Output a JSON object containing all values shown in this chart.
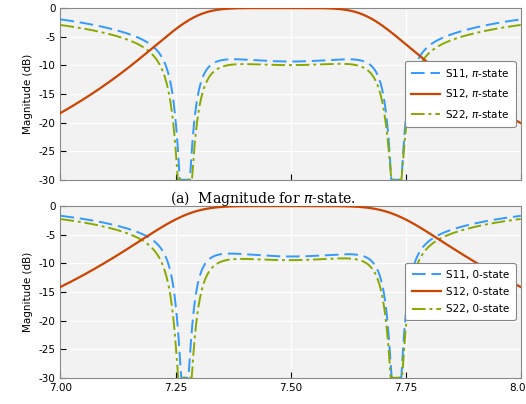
{
  "xlim": [
    7.0,
    8.0
  ],
  "ylim": [
    -30,
    0
  ],
  "yticks": [
    0,
    -5,
    -10,
    -15,
    -20,
    -25,
    -30
  ],
  "xticks": [
    7.0,
    7.25,
    7.5,
    7.75,
    8.0
  ],
  "ylabel": "Magnitude (dB)",
  "caption": "(a)  Magnitude for $\\pi$-state.",
  "legend1": [
    "S11, $\\pi$-state",
    "S12, $\\pi$-state",
    "S22, $\\pi$-state"
  ],
  "legend2": [
    "S11, 0-state",
    "S12, 0-state",
    "S22, 0-state"
  ],
  "colors": {
    "S11": "#3399ff",
    "S12": "#cc4400",
    "S22": "#88aa00"
  },
  "bg_color": "#f2f2f2"
}
